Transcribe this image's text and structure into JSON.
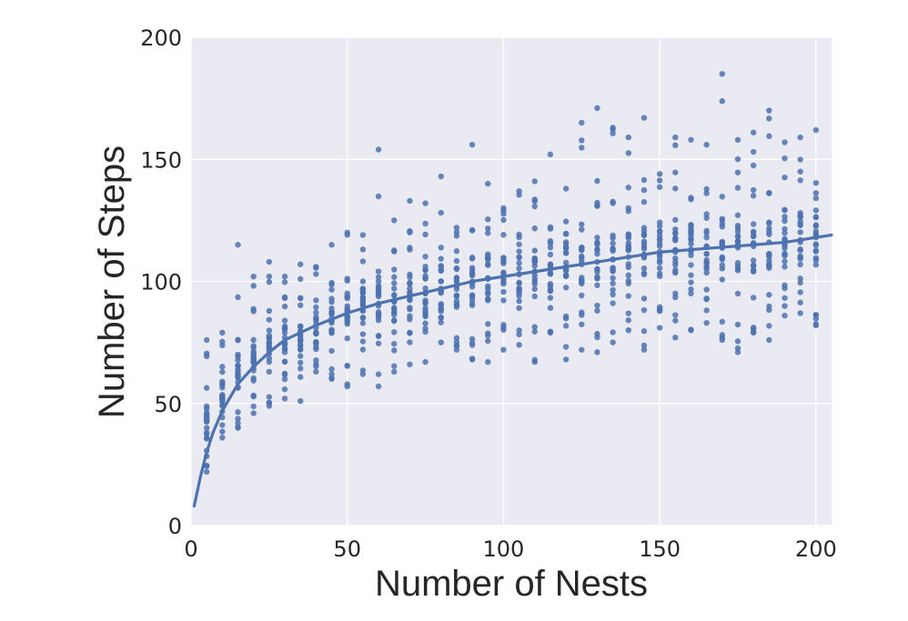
{
  "chart_data": {
    "type": "scatter",
    "title": "",
    "xlabel": "Number of Nests",
    "ylabel": "Number of Steps",
    "xlim": [
      0,
      205
    ],
    "ylim": [
      0,
      200
    ],
    "xticks": [
      0,
      50,
      100,
      150,
      200
    ],
    "yticks": [
      0,
      50,
      100,
      150,
      200
    ],
    "grid": true,
    "legend": "none",
    "colors": {
      "points": "#4c72b0",
      "fit_line": "#4c72b0",
      "plot_background": "#eaeaf2",
      "grid": "#ffffff"
    },
    "scatter_summary": [
      {
        "x": 5,
        "low": 22,
        "q1": 33,
        "center": 40,
        "q3": 48,
        "high": 76
      },
      {
        "x": 10,
        "low": 36,
        "q1": 47,
        "center": 53,
        "q3": 60,
        "high": 79
      },
      {
        "x": 15,
        "low": 40,
        "q1": 55,
        "center": 62,
        "q3": 70,
        "high": 115
      },
      {
        "x": 20,
        "low": 46,
        "q1": 60,
        "center": 67,
        "q3": 76,
        "high": 102
      },
      {
        "x": 25,
        "low": 49,
        "q1": 64,
        "center": 72,
        "q3": 80,
        "high": 108
      },
      {
        "x": 30,
        "low": 52,
        "q1": 67,
        "center": 75,
        "q3": 84,
        "high": 102
      },
      {
        "x": 35,
        "low": 51,
        "q1": 70,
        "center": 78,
        "q3": 87,
        "high": 107
      },
      {
        "x": 40,
        "low": 63,
        "q1": 73,
        "center": 81,
        "q3": 89,
        "high": 106
      },
      {
        "x": 45,
        "low": 60,
        "q1": 75,
        "center": 83,
        "q3": 92,
        "high": 115
      },
      {
        "x": 50,
        "low": 57,
        "q1": 78,
        "center": 86,
        "q3": 95,
        "high": 120
      },
      {
        "x": 55,
        "low": 62,
        "q1": 80,
        "center": 88,
        "q3": 97,
        "high": 119
      },
      {
        "x": 60,
        "low": 57,
        "q1": 82,
        "center": 90,
        "q3": 99,
        "high": 154
      },
      {
        "x": 65,
        "low": 63,
        "q1": 83,
        "center": 92,
        "q3": 101,
        "high": 125
      },
      {
        "x": 70,
        "low": 66,
        "q1": 85,
        "center": 94,
        "q3": 103,
        "high": 133
      },
      {
        "x": 75,
        "low": 67,
        "q1": 86,
        "center": 95,
        "q3": 105,
        "high": 132
      },
      {
        "x": 80,
        "low": 75,
        "q1": 88,
        "center": 97,
        "q3": 106,
        "high": 143
      },
      {
        "x": 85,
        "low": 72,
        "q1": 89,
        "center": 98,
        "q3": 108,
        "high": 122
      },
      {
        "x": 90,
        "low": 68,
        "q1": 90,
        "center": 100,
        "q3": 109,
        "high": 156
      },
      {
        "x": 95,
        "low": 67,
        "q1": 91,
        "center": 101,
        "q3": 111,
        "high": 140
      },
      {
        "x": 100,
        "low": 72,
        "q1": 93,
        "center": 102,
        "q3": 112,
        "high": 130
      },
      {
        "x": 105,
        "low": 74,
        "q1": 94,
        "center": 103,
        "q3": 113,
        "high": 137
      },
      {
        "x": 110,
        "low": 67,
        "q1": 95,
        "center": 104,
        "q3": 114,
        "high": 141
      },
      {
        "x": 115,
        "low": 79,
        "q1": 96,
        "center": 105,
        "q3": 115,
        "high": 152
      },
      {
        "x": 120,
        "low": 68,
        "q1": 96,
        "center": 106,
        "q3": 116,
        "high": 138
      },
      {
        "x": 125,
        "low": 72,
        "q1": 97,
        "center": 107,
        "q3": 117,
        "high": 165
      },
      {
        "x": 130,
        "low": 71,
        "q1": 98,
        "center": 108,
        "q3": 118,
        "high": 171
      },
      {
        "x": 135,
        "low": 75,
        "q1": 99,
        "center": 109,
        "q3": 119,
        "high": 163
      },
      {
        "x": 140,
        "low": 80,
        "q1": 100,
        "center": 110,
        "q3": 120,
        "high": 159
      },
      {
        "x": 145,
        "low": 72,
        "q1": 100,
        "center": 111,
        "q3": 121,
        "high": 167
      },
      {
        "x": 150,
        "low": 81,
        "q1": 101,
        "center": 111,
        "q3": 122,
        "high": 144
      },
      {
        "x": 155,
        "low": 77,
        "q1": 102,
        "center": 112,
        "q3": 122,
        "high": 159
      },
      {
        "x": 160,
        "low": 80,
        "q1": 102,
        "center": 113,
        "q3": 123,
        "high": 158
      },
      {
        "x": 165,
        "low": 83,
        "q1": 103,
        "center": 114,
        "q3": 124,
        "high": 156
      },
      {
        "x": 170,
        "low": 76,
        "q1": 103,
        "center": 114,
        "q3": 125,
        "high": 185
      },
      {
        "x": 175,
        "low": 71,
        "q1": 104,
        "center": 115,
        "q3": 125,
        "high": 158
      },
      {
        "x": 180,
        "low": 79,
        "q1": 104,
        "center": 115,
        "q3": 126,
        "high": 161
      },
      {
        "x": 185,
        "low": 76,
        "q1": 105,
        "center": 116,
        "q3": 126,
        "high": 170
      },
      {
        "x": 190,
        "low": 86,
        "q1": 105,
        "center": 117,
        "q3": 127,
        "high": 157
      },
      {
        "x": 195,
        "low": 87,
        "q1": 106,
        "center": 117,
        "q3": 128,
        "high": 159
      },
      {
        "x": 200,
        "low": 82,
        "q1": 106,
        "center": 118,
        "q3": 128,
        "high": 162
      }
    ],
    "fit_line": {
      "x": [
        1,
        2,
        3,
        5,
        7,
        10,
        15,
        20,
        25,
        30,
        40,
        50,
        60,
        70,
        80,
        90,
        100,
        110,
        120,
        130,
        140,
        150,
        160,
        170,
        180,
        190,
        200,
        205
      ],
      "y": [
        8,
        14,
        20,
        30,
        38,
        47,
        58,
        65,
        71,
        76,
        82,
        87,
        91,
        94,
        97,
        100,
        102,
        104,
        106,
        108,
        110,
        112,
        113,
        114,
        115,
        116,
        118,
        119
      ]
    }
  }
}
